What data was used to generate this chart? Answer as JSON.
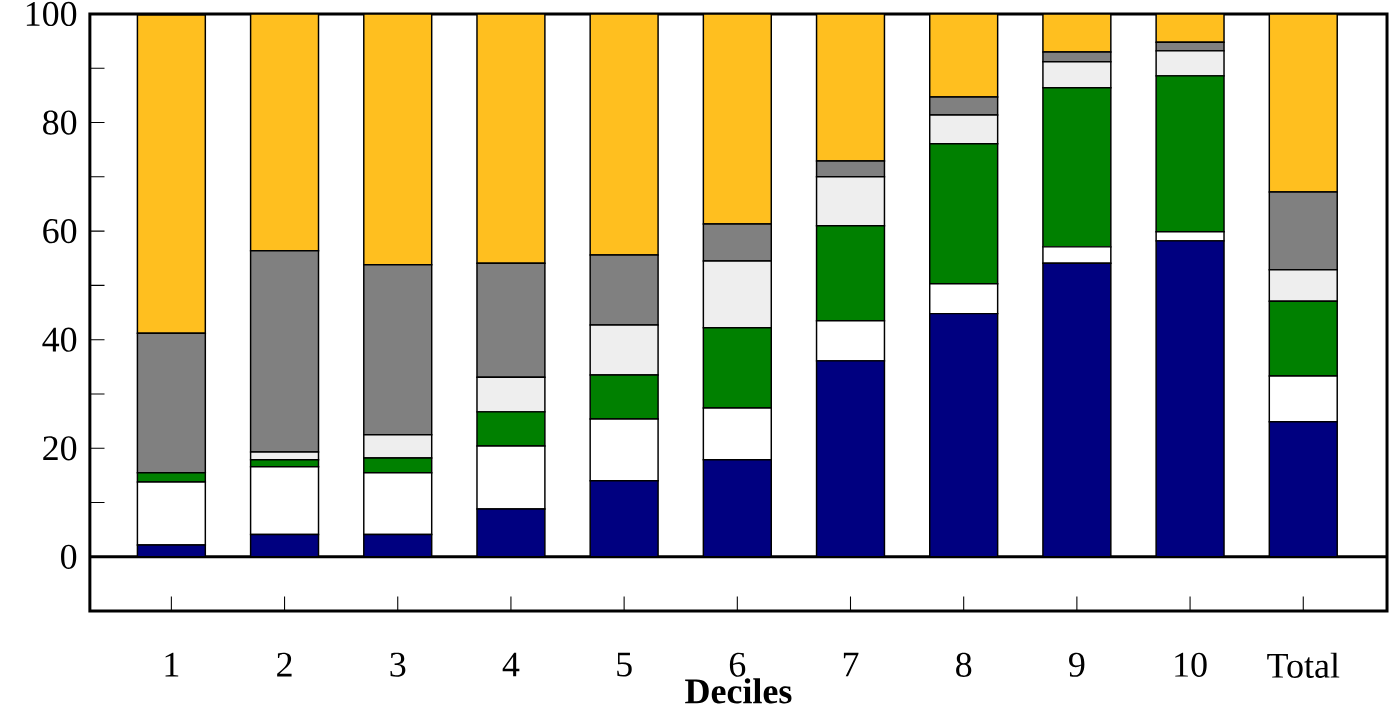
{
  "chart_data": {
    "type": "bar",
    "stacked": true,
    "xlabel": "Deciles",
    "categories": [
      "1",
      "2",
      "3",
      "4",
      "5",
      "6",
      "7",
      "8",
      "9",
      "10",
      "Total"
    ],
    "series": [
      {
        "color": "#000080",
        "values": [
          2.2,
          4.1,
          4.1,
          8.8,
          14.0,
          17.9,
          36.1,
          44.8,
          54.1,
          58.2,
          24.9
        ]
      },
      {
        "color": "#ffffff",
        "values": [
          11.6,
          12.5,
          11.4,
          11.6,
          11.4,
          9.5,
          7.4,
          5.5,
          3.0,
          1.7,
          8.4
        ]
      },
      {
        "color": "#008000",
        "values": [
          1.7,
          1.3,
          2.7,
          6.3,
          8.1,
          14.8,
          17.5,
          25.8,
          29.3,
          28.7,
          13.8
        ]
      },
      {
        "color": "#eeeeee",
        "values": [
          null,
          1.4,
          4.3,
          6.4,
          9.2,
          12.3,
          9.0,
          5.3,
          4.8,
          4.6,
          5.8
        ]
      },
      {
        "color": "#808080",
        "values": [
          25.7,
          37.1,
          31.3,
          21.0,
          12.9,
          6.8,
          2.9,
          3.3,
          1.8,
          1.6,
          14.3
        ]
      },
      {
        "color": "#ffbf1f",
        "values": [
          58.6,
          43.6,
          46.2,
          45.9,
          44.4,
          38.7,
          27.1,
          15.3,
          7.0,
          5.2,
          32.8
        ]
      }
    ],
    "ylim": [
      -10,
      100
    ],
    "yticks": [
      0,
      {
        "value": 10,
        "label": null
      },
      20,
      {
        "value": 30,
        "label": null
      },
      40,
      {
        "value": 50,
        "label": null
      },
      60,
      {
        "value": 70,
        "label": null
      },
      80,
      {
        "value": 90,
        "label": null
      },
      100
    ]
  }
}
